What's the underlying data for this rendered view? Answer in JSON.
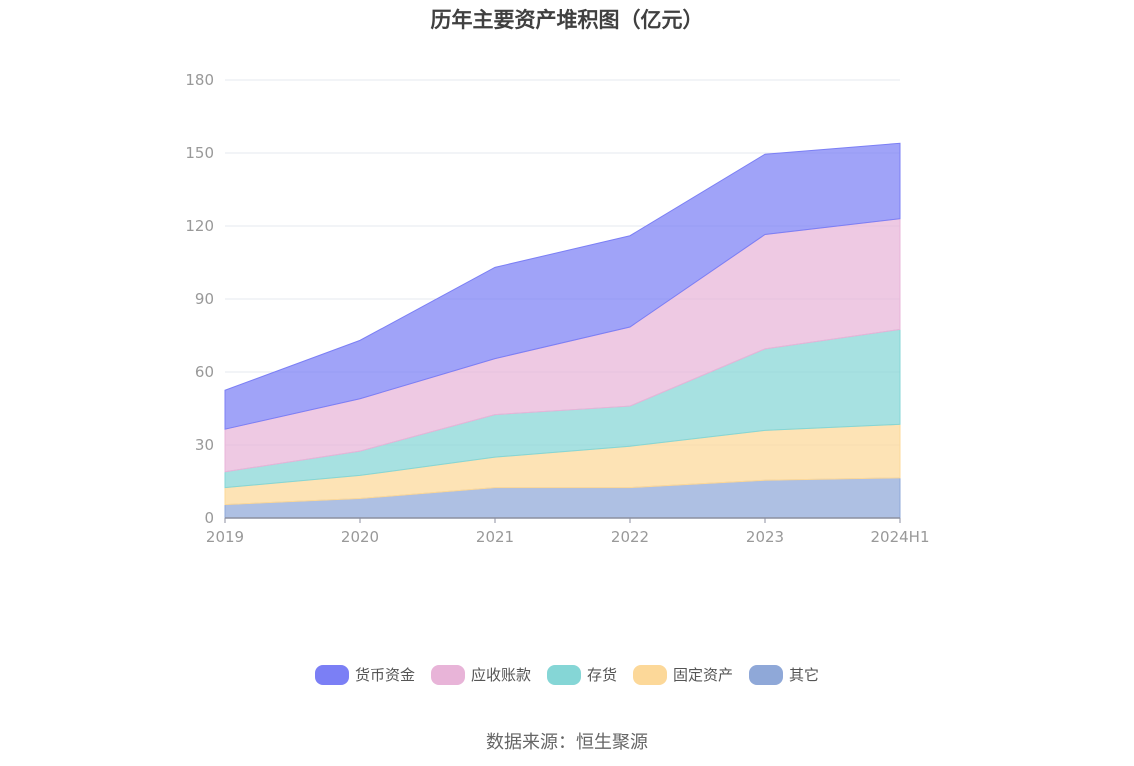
{
  "chart_data": {
    "type": "area",
    "title": "历年主要资产堆积图（亿元）",
    "stacked": true,
    "categories": [
      "2019",
      "2020",
      "2021",
      "2022",
      "2023",
      "2024H1"
    ],
    "y_ticks": [
      "0",
      "30",
      "60",
      "90",
      "120",
      "150",
      "180"
    ],
    "ylim": [
      0,
      180
    ],
    "grid": true,
    "legend_position": "bottom",
    "series": [
      {
        "name": "其它",
        "color": "#8fa8d8",
        "values": [
          5.5,
          8,
          12.5,
          12.5,
          15.5,
          16.5
        ]
      },
      {
        "name": "固定资产",
        "color": "#fcd899",
        "values": [
          7,
          9.5,
          12.5,
          17,
          20.5,
          22
        ]
      },
      {
        "name": "存货",
        "color": "#85d6d6",
        "values": [
          6.5,
          10,
          17.5,
          16.5,
          33.5,
          39
        ]
      },
      {
        "name": "应收账款",
        "color": "#e8b4d8",
        "values": [
          17.5,
          21.5,
          23,
          32.5,
          47,
          45.5
        ]
      },
      {
        "name": "货币资金",
        "color": "#7b7ff5",
        "values": [
          16,
          24,
          37.5,
          37.5,
          33,
          31
        ]
      }
    ]
  },
  "source": "数据来源：恒生聚源"
}
